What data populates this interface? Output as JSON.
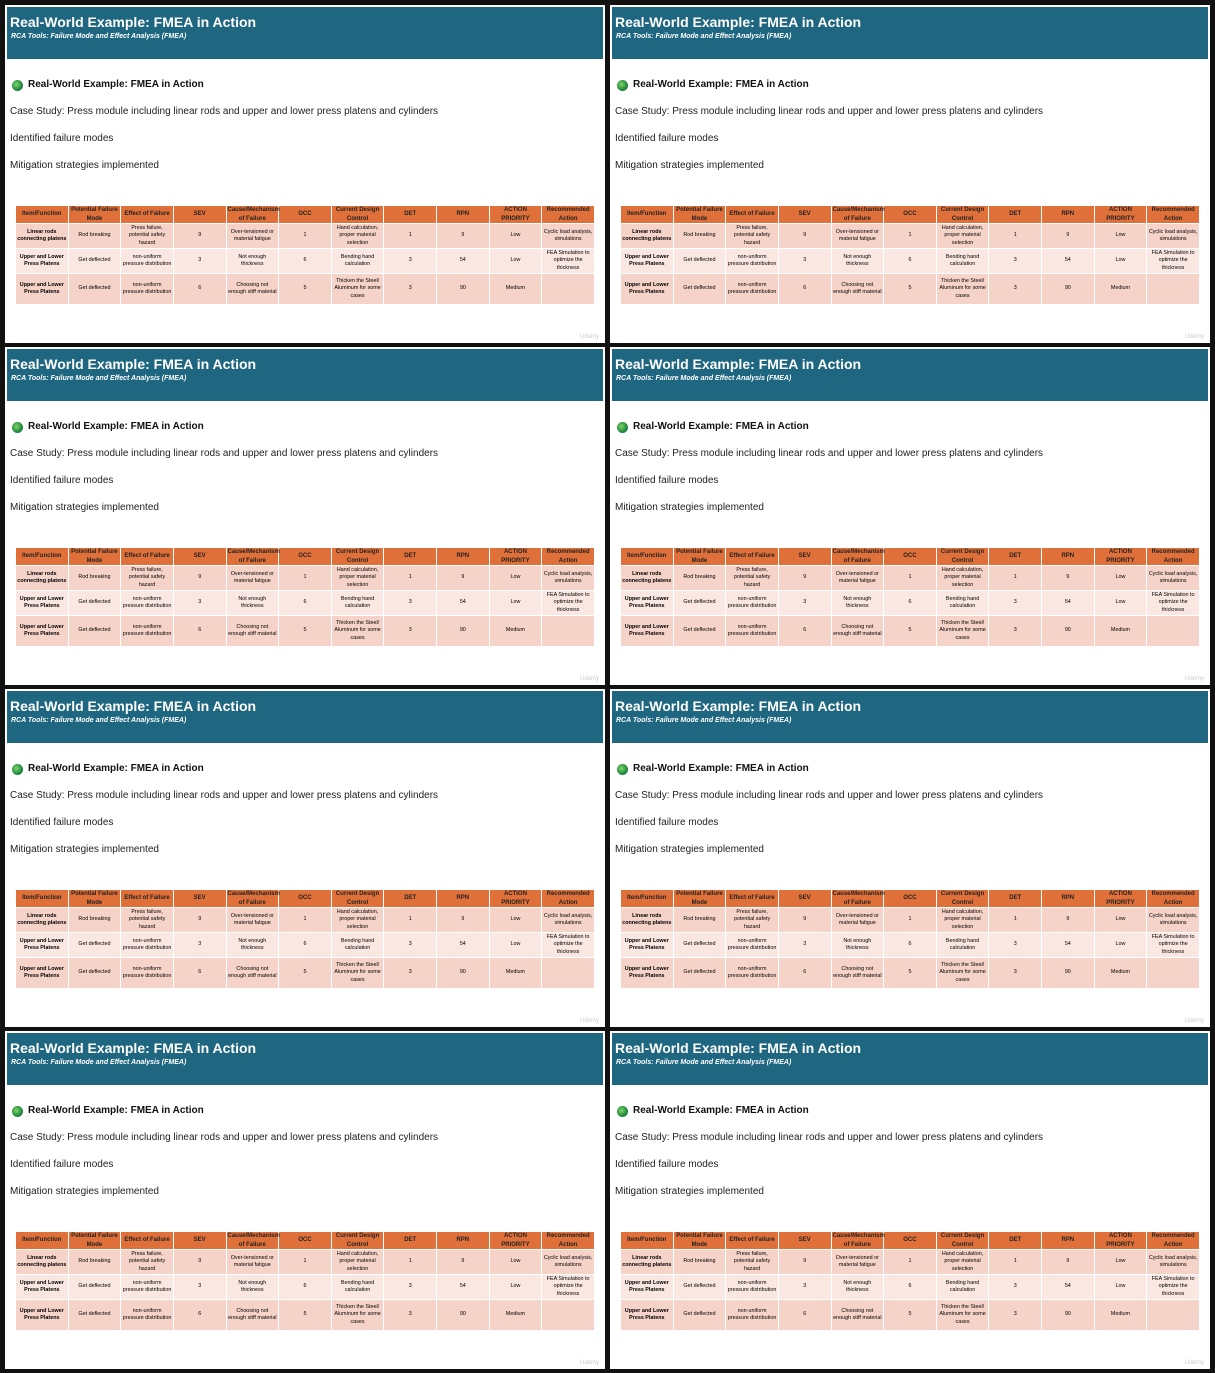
{
  "slide": {
    "title": "Real-World Example: FMEA in Action",
    "subtitle": "RCA Tools: Failure Mode and Effect Analysis (FMEA)",
    "heading": "Real-World Example: FMEA in Action",
    "bullets": [
      "Case Study: Press module including linear rods and upper and lower press platens and cylinders",
      "Identified failure modes",
      "Mitigation strategies implemented"
    ],
    "table": {
      "header": [
        "Item/Function",
        "Potential Failure Mode",
        "Effect of Failure",
        "SEV",
        "Cause/Mechanism of Failure",
        "OCC",
        "Current Design Control",
        "DET",
        "RPN",
        "ACTION PRIORITY",
        "Recommended Action"
      ],
      "rows": [
        [
          "Linear rods connecting platens",
          "Rod breaking",
          "Press failure, potential safety hazard",
          9,
          "Over-tensioned or material fatigue",
          1,
          "Hand calculation, proper material selection",
          1,
          9,
          "Low",
          "Cyclic load analysis, simulations"
        ],
        [
          "Upper and Lower Press Platens",
          "Get deflected",
          "non-uniform pressure distribution",
          3,
          "Not enough thickness",
          6,
          "Bending hand calculation",
          3,
          54,
          "Low",
          "FEA Simulation to optimize the thickness"
        ],
        [
          "Upper and Lower Press Platens",
          "Get deflected",
          "non-uniform pressure distribution",
          6,
          "Choosing not enough stiff material",
          5,
          "Thicken the Steel/ Aluminum for some cases",
          3,
          90,
          "Medium"
        ]
      ]
    },
    "watermark": "Udemy"
  }
}
